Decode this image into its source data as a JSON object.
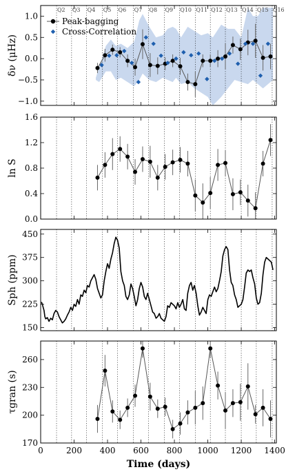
{
  "chart_data": [
    {
      "type": "scatter",
      "ylabel": "δν (μHz)",
      "ylim": [
        -1.1,
        1.25
      ],
      "yticks": [
        -1.0,
        -0.5,
        0.0,
        0.5,
        1.0
      ],
      "ytick_labels": [
        "−1.0",
        "−0.5",
        "0.0",
        "0.5",
        "1.0"
      ],
      "quarter_labels": [
        "Q2",
        "Q3",
        "Q4",
        "Q5",
        "Q6",
        "Q7",
        "Q8",
        "Q9",
        "Q10",
        "Q11",
        "Q12",
        "Q13",
        "Q14",
        "Q15",
        "Q16"
      ],
      "legend": [
        "Peak-bagging",
        "Cross-Correlation"
      ],
      "legend_position": "top-left",
      "band": {
        "x": [
          330,
          350,
          390,
          420,
          450,
          480,
          520,
          560,
          590,
          610,
          650,
          690,
          730,
          760,
          790,
          810,
          840,
          880,
          920,
          960,
          1000,
          1030,
          1080,
          1120,
          1160,
          1200,
          1240,
          1270,
          1300,
          1330,
          1360,
          1390
        ],
        "upper": [
          -0.45,
          -0.2,
          0.3,
          0.45,
          0.3,
          0.35,
          0.25,
          0.4,
          0.9,
          1.05,
          0.75,
          0.5,
          0.55,
          0.7,
          0.75,
          0.7,
          0.5,
          0.75,
          0.65,
          0.55,
          0.6,
          0.5,
          0.8,
          0.7,
          0.7,
          0.5,
          1.2,
          1.0,
          1.0,
          1.2,
          1.2,
          1.2
        ],
        "lower": [
          -0.5,
          -0.55,
          -0.3,
          -0.3,
          -0.5,
          -0.45,
          -0.55,
          -0.65,
          -0.5,
          -0.35,
          -0.5,
          -0.55,
          -0.45,
          -0.5,
          -0.55,
          -0.45,
          -0.6,
          -0.55,
          -0.7,
          -0.8,
          -0.9,
          -1.1,
          -0.9,
          -0.7,
          -0.5,
          -0.55,
          -0.6,
          -0.5,
          -0.6,
          -0.7,
          -0.6,
          -0.5
        ]
      },
      "series": [
        {
          "name": "Peak-bagging",
          "x": [
            340,
            385,
            430,
            475,
            520,
            565,
            610,
            655,
            700,
            745,
            790,
            835,
            880,
            925,
            970,
            1015,
            1060,
            1105,
            1150,
            1195,
            1240,
            1285,
            1330,
            1375
          ],
          "y": [
            -0.22,
            0.08,
            0.21,
            0.15,
            -0.05,
            -0.2,
            0.34,
            -0.15,
            -0.17,
            -0.12,
            -0.05,
            -0.18,
            -0.55,
            -0.6,
            -0.05,
            -0.05,
            0.0,
            0.05,
            0.32,
            0.22,
            0.38,
            0.42,
            0.02,
            0.05
          ],
          "err": [
            0.12,
            0.15,
            0.12,
            0.12,
            0.15,
            0.2,
            0.35,
            0.28,
            0.2,
            0.15,
            0.15,
            0.2,
            0.2,
            0.3,
            0.15,
            0.15,
            0.2,
            0.3,
            0.2,
            0.25,
            0.3,
            0.4,
            0.3,
            0.3
          ]
        },
        {
          "name": "Cross-Correlation",
          "x": [
            365,
            410,
            455,
            500,
            545,
            585,
            630,
            675,
            720,
            760,
            810,
            855,
            900,
            945,
            995,
            1040,
            1085,
            1130,
            1180,
            1225,
            1270,
            1315,
            1360
          ],
          "y": [
            -0.15,
            0.07,
            0.08,
            0.18,
            -0.1,
            -0.55,
            0.5,
            0.35,
            0.07,
            -0.1,
            0.0,
            0.15,
            0.08,
            0.12,
            -0.48,
            -0.05,
            0.0,
            0.12,
            -0.12,
            0.35,
            0.35,
            -0.4,
            0.35
          ]
        }
      ]
    },
    {
      "type": "scatter",
      "ylabel": "ln S",
      "ylim": [
        0.0,
        1.6
      ],
      "yticks": [
        0.0,
        0.4,
        0.8,
        1.2,
        1.6
      ],
      "ytick_labels": [
        "0.0",
        "0.4",
        "0.8",
        "1.2",
        "1.6"
      ],
      "series": [
        {
          "name": "",
          "x": [
            340,
            385,
            430,
            475,
            520,
            565,
            610,
            655,
            700,
            745,
            790,
            835,
            880,
            925,
            970,
            1015,
            1060,
            1105,
            1150,
            1195,
            1240,
            1285,
            1330,
            1375
          ],
          "y": [
            0.65,
            0.85,
            1.02,
            1.1,
            0.98,
            0.74,
            0.94,
            0.9,
            0.65,
            0.82,
            0.89,
            0.93,
            0.87,
            0.37,
            0.26,
            0.41,
            0.85,
            0.88,
            0.39,
            0.42,
            0.29,
            0.17,
            0.87,
            1.24
          ],
          "err": [
            0.2,
            0.2,
            0.25,
            0.2,
            0.2,
            0.2,
            0.2,
            0.25,
            0.2,
            0.2,
            0.2,
            0.2,
            0.2,
            0.25,
            0.3,
            0.25,
            0.25,
            0.2,
            0.25,
            0.2,
            0.25,
            0.25,
            0.2,
            0.25
          ]
        }
      ]
    },
    {
      "type": "line",
      "ylabel": "Sph (ppm)",
      "ylim": [
        140,
        465
      ],
      "yticks": [
        150,
        225,
        300,
        375,
        450
      ],
      "ytick_labels": [
        "150",
        "225",
        "300",
        "375",
        "450"
      ],
      "series": [
        {
          "name": "",
          "x": [
            5,
            10,
            15,
            20,
            25,
            30,
            40,
            50,
            60,
            70,
            80,
            90,
            100,
            110,
            120,
            130,
            140,
            150,
            160,
            170,
            180,
            190,
            200,
            210,
            220,
            230,
            240,
            250,
            260,
            270,
            280,
            290,
            300,
            310,
            320,
            330,
            340,
            350,
            360,
            370,
            380,
            390,
            400,
            410,
            420,
            430,
            440,
            450,
            460,
            470,
            480,
            490,
            500,
            510,
            520,
            530,
            540,
            550,
            560,
            570,
            580,
            590,
            600,
            610,
            620,
            630,
            640,
            650,
            660,
            670,
            680,
            690,
            700,
            710,
            720,
            730,
            740,
            750,
            760,
            770,
            780,
            790,
            800,
            810,
            820,
            830,
            840,
            850,
            860,
            870,
            880,
            890,
            900,
            910,
            920,
            930,
            940,
            950,
            960,
            970,
            980,
            990,
            1000,
            1010,
            1020,
            1030,
            1040,
            1050,
            1060,
            1070,
            1080,
            1090,
            1100,
            1110,
            1120,
            1130,
            1140,
            1150,
            1160,
            1170,
            1180,
            1190,
            1200,
            1210,
            1220,
            1230,
            1240,
            1250,
            1260,
            1270,
            1280,
            1290,
            1300,
            1310,
            1320,
            1330,
            1340,
            1350,
            1360,
            1370,
            1380,
            1390
          ],
          "y": [
            232,
            225,
            215,
            205,
            185,
            178,
            182,
            170,
            180,
            175,
            195,
            205,
            200,
            185,
            175,
            165,
            170,
            178,
            190,
            200,
            215,
            205,
            225,
            218,
            240,
            225,
            255,
            250,
            270,
            262,
            285,
            280,
            300,
            310,
            320,
            305,
            275,
            260,
            245,
            255,
            300,
            330,
            355,
            340,
            370,
            390,
            420,
            440,
            430,
            405,
            330,
            300,
            285,
            250,
            240,
            255,
            290,
            275,
            250,
            220,
            240,
            275,
            295,
            280,
            250,
            240,
            260,
            240,
            220,
            200,
            195,
            180,
            185,
            195,
            180,
            175,
            170,
            185,
            220,
            215,
            230,
            225,
            220,
            210,
            230,
            215,
            225,
            240,
            210,
            205,
            260,
            285,
            295,
            270,
            285,
            260,
            220,
            190,
            200,
            215,
            205,
            195,
            240,
            255,
            250,
            265,
            280,
            265,
            275,
            300,
            330,
            380,
            400,
            410,
            400,
            335,
            295,
            285,
            255,
            240,
            215,
            220,
            225,
            240,
            280,
            325,
            335,
            330,
            335,
            310,
            290,
            245,
            225,
            230,
            260,
            320,
            360,
            375,
            370,
            365,
            360,
            335
          ]
        }
      ]
    },
    {
      "type": "scatter",
      "ylabel": "τgran (s)",
      "xlabel": "Time (days)",
      "ylim": [
        170,
        280
      ],
      "yticks": [
        170,
        200,
        230,
        260
      ],
      "ytick_labels": [
        "170",
        "200",
        "230",
        "260"
      ],
      "xlim": [
        0,
        1410
      ],
      "xticks": [
        0,
        200,
        400,
        600,
        800,
        1000,
        1200,
        1400
      ],
      "xtick_labels": [
        "0",
        "200",
        "400",
        "600",
        "800",
        "1000",
        "1200",
        "1400"
      ],
      "series": [
        {
          "name": "",
          "x": [
            340,
            385,
            430,
            475,
            520,
            565,
            610,
            655,
            700,
            745,
            790,
            835,
            880,
            925,
            970,
            1015,
            1060,
            1105,
            1150,
            1195,
            1240,
            1285,
            1330,
            1375
          ],
          "y": [
            196,
            248,
            204,
            195,
            208,
            221,
            272,
            220,
            207,
            209,
            185,
            191,
            203,
            208,
            213,
            272,
            232,
            205,
            213,
            214,
            231,
            201,
            208,
            196
          ],
          "err": [
            15,
            17,
            12,
            10,
            10,
            12,
            10,
            15,
            10,
            10,
            10,
            12,
            13,
            18,
            18,
            10,
            15,
            20,
            15,
            20,
            25,
            10,
            20,
            20
          ]
        }
      ]
    }
  ],
  "colors": {
    "band": "#c9d8ee",
    "peak_bagging": "#000000",
    "peak_line": "#555555",
    "cross_correlation": "#1f5fae"
  },
  "quarter_boundaries": [
    95,
    185,
    275,
    370,
    460,
    555,
    645,
    740,
    830,
    925,
    1015,
    1105,
    1200,
    1290,
    1385
  ]
}
